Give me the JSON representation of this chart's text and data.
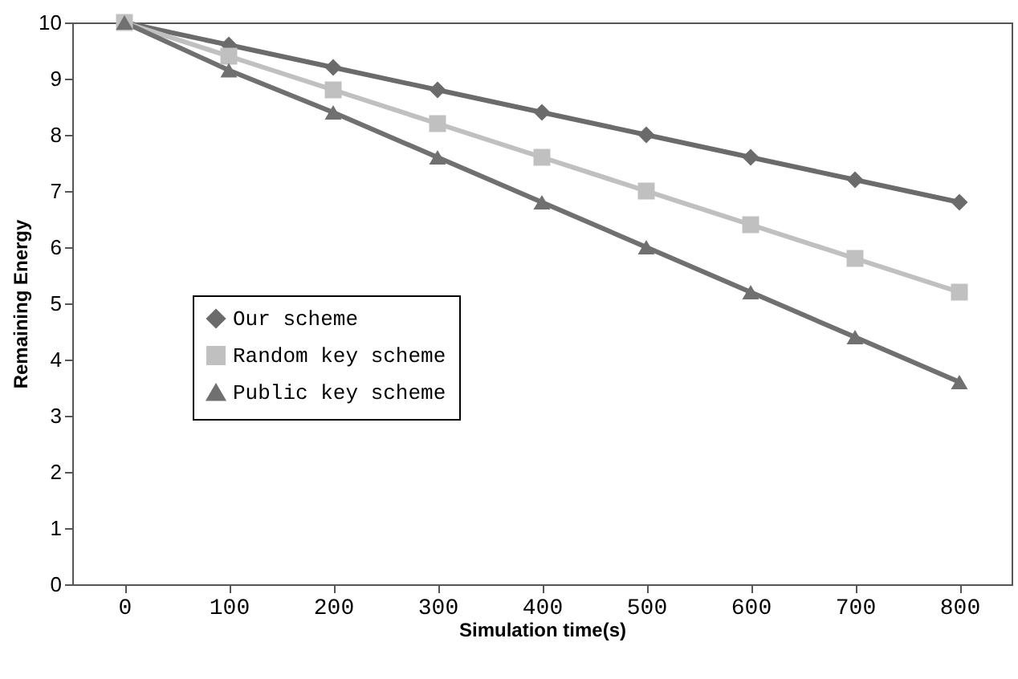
{
  "chart_data": {
    "type": "line",
    "xlabel": "Simulation time(s)",
    "ylabel": "Remaining Energy",
    "categories": [
      "0",
      "100",
      "200",
      "300",
      "400",
      "500",
      "600",
      "700",
      "800"
    ],
    "series": [
      {
        "name": "Our scheme",
        "color": "#6b6b6b",
        "marker": "diamond",
        "values": [
          10,
          9.6,
          9.2,
          8.8,
          8.4,
          8.0,
          7.6,
          7.2,
          6.8
        ]
      },
      {
        "name": "Random key scheme",
        "color": "#c0c0c0",
        "marker": "square",
        "values": [
          10,
          9.4,
          8.8,
          8.2,
          7.6,
          7.0,
          6.4,
          5.8,
          5.2
        ]
      },
      {
        "name": "Public key scheme",
        "color": "#707070",
        "marker": "triangle",
        "values": [
          10,
          9.15,
          8.4,
          7.6,
          6.8,
          6.0,
          5.2,
          4.4,
          3.6
        ]
      }
    ],
    "ylim": [
      0,
      10
    ],
    "yticks": [
      0,
      1,
      2,
      3,
      4,
      5,
      6,
      7,
      8,
      9,
      10
    ],
    "legend": "left",
    "line_style": "solid"
  }
}
